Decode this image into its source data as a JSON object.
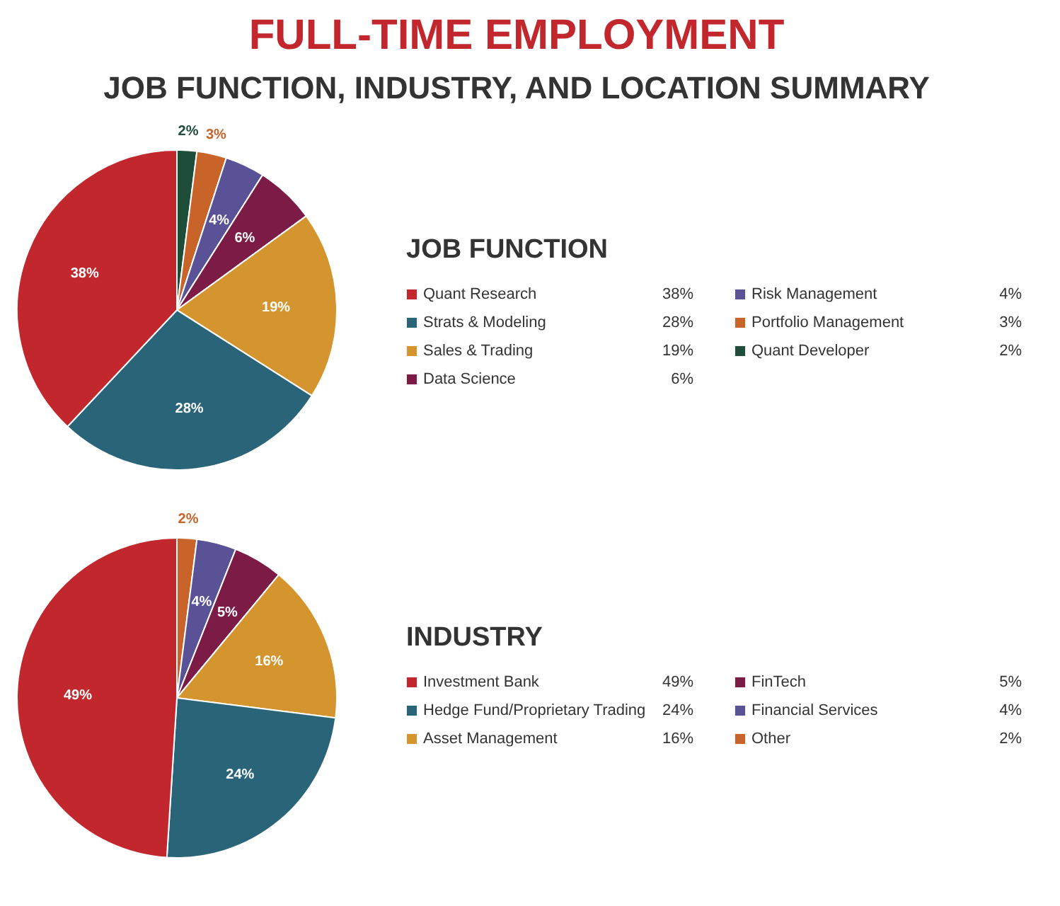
{
  "chart_data": [
    {
      "type": "pie",
      "title": "FULL-TIME EMPLOYMENT",
      "subtitle": "JOB FUNCTION, INDUSTRY, AND LOCATION SUMMARY",
      "legend_title": "JOB FUNCTION",
      "categories": [
        "Quant Research",
        "Strats & Modeling",
        "Sales & Trading",
        "Data Science",
        "Risk Management",
        "Portfolio Management",
        "Quant Developer"
      ],
      "values": [
        38,
        28,
        19,
        6,
        4,
        3,
        2
      ],
      "value_labels": [
        "38%",
        "28%",
        "19%",
        "6%",
        "4%",
        "3%",
        "2%"
      ],
      "colors": [
        "#c1272d",
        "#2a6478",
        "#d4952f",
        "#7b1b46",
        "#5a5296",
        "#c8632a",
        "#1e4d3a"
      ],
      "data_labels": true,
      "legend": "right"
    },
    {
      "type": "pie",
      "legend_title": "INDUSTRY",
      "categories": [
        "Investment Bank",
        "Hedge Fund/Proprietary Trading",
        "Asset Management",
        "FinTech",
        "Financial Services",
        "Other"
      ],
      "values": [
        49,
        24,
        16,
        5,
        4,
        2
      ],
      "value_labels": [
        "49%",
        "24%",
        "16%",
        "5%",
        "4%",
        "2%"
      ],
      "colors": [
        "#c1272d",
        "#2a6478",
        "#d4952f",
        "#7b1b46",
        "#5a5296",
        "#c8632a"
      ],
      "data_labels": true,
      "legend": "right"
    }
  ]
}
